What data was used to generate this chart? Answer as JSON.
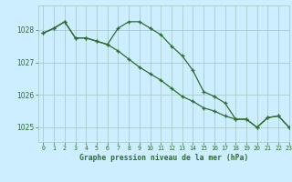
{
  "title": "Graphe pression niveau de la mer (hPa)",
  "background_color": "#cceeff",
  "grid_color": "#aacccc",
  "line_color": "#2d6e2d",
  "xlim": [
    -0.5,
    23
  ],
  "ylim": [
    1024.55,
    1028.75
  ],
  "yticks": [
    1025,
    1026,
    1027,
    1028
  ],
  "xticks": [
    0,
    1,
    2,
    3,
    4,
    5,
    6,
    7,
    8,
    9,
    10,
    11,
    12,
    13,
    14,
    15,
    16,
    17,
    18,
    19,
    20,
    21,
    22,
    23
  ],
  "series1_x": [
    0,
    1,
    2,
    3,
    4,
    5,
    6,
    7,
    8,
    9,
    10,
    11,
    12,
    13,
    14,
    15,
    16,
    17,
    18,
    19,
    20,
    21,
    22,
    23
  ],
  "series1_y": [
    1027.9,
    1028.05,
    1028.25,
    1027.75,
    1027.75,
    1027.65,
    1027.55,
    1028.05,
    1028.25,
    1028.25,
    1028.05,
    1027.85,
    1027.5,
    1027.2,
    1026.75,
    1026.1,
    1025.95,
    1025.75,
    1025.25,
    1025.25,
    1025.0,
    1025.3,
    1025.35,
    1025.0
  ],
  "series2_x": [
    0,
    1,
    2,
    3,
    4,
    5,
    6,
    7,
    8,
    9,
    10,
    11,
    12,
    13,
    14,
    15,
    16,
    17,
    18,
    19,
    20,
    21,
    22,
    23
  ],
  "series2_y": [
    1027.9,
    1028.05,
    1028.25,
    1027.75,
    1027.75,
    1027.65,
    1027.55,
    1027.35,
    1027.1,
    1026.85,
    1026.65,
    1026.45,
    1026.2,
    1025.95,
    1025.8,
    1025.6,
    1025.5,
    1025.35,
    1025.25,
    1025.25,
    1025.0,
    1025.3,
    1025.35,
    1025.0
  ]
}
